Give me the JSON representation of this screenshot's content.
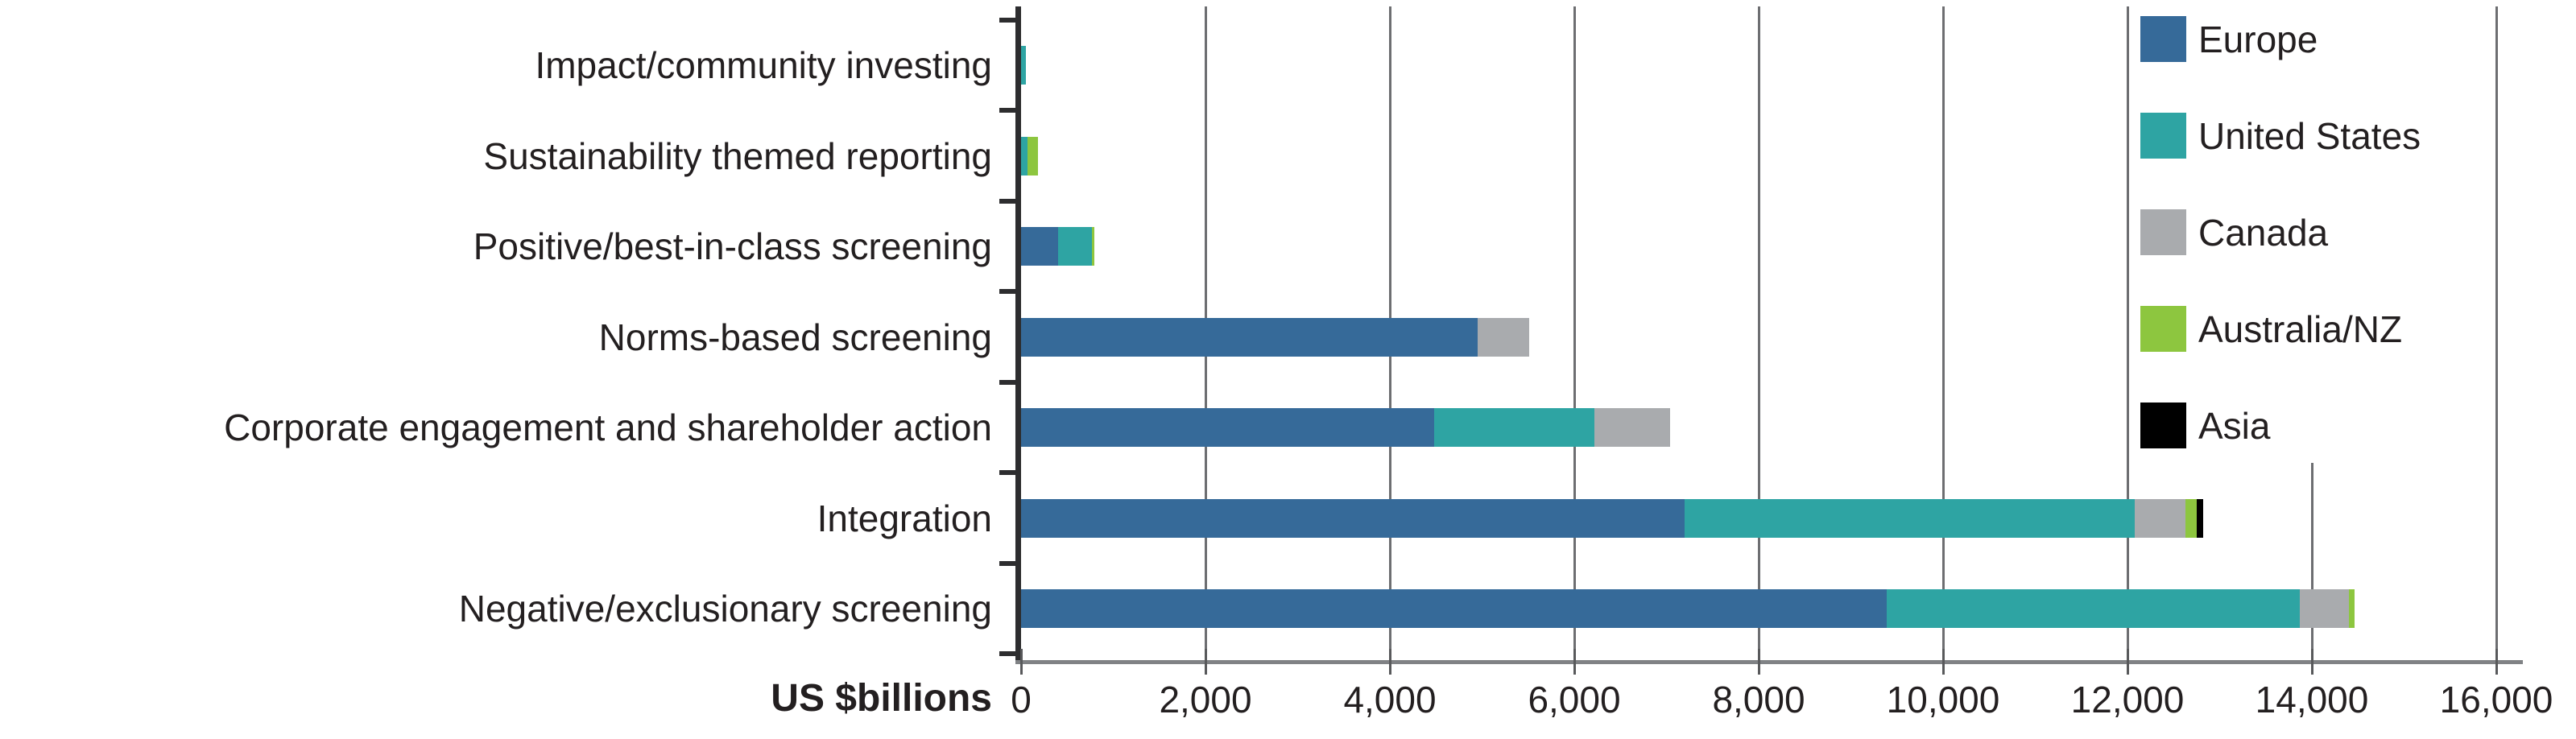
{
  "chart_data": {
    "type": "bar",
    "orientation": "horizontal",
    "stacked": true,
    "title": "",
    "xlabel": "US $billions",
    "xlim": [
      0,
      16000
    ],
    "xticks": [
      0,
      2000,
      4000,
      6000,
      8000,
      10000,
      12000,
      14000,
      16000
    ],
    "xtick_labels": [
      "0",
      "2,000",
      "4,000",
      "6,000",
      "8,000",
      "10,000",
      "12,000",
      "14,000",
      "16,000"
    ],
    "grid": true,
    "legend_position": "top-right",
    "categories": [
      "Impact/community investing",
      "Sustainability themed reporting",
      "Positive/best-in-class screening",
      "Norms-based screening",
      "Corporate engagement and shareholder action",
      "Integration",
      "Negative/exclusionary screening"
    ],
    "series": [
      {
        "name": "Europe",
        "color": "#366A99",
        "values": [
          0,
          0,
          400,
          4950,
          4480,
          7200,
          9390
        ]
      },
      {
        "name": "United States",
        "color": "#2EA4A3",
        "values": [
          50,
          70,
          365,
          0,
          1740,
          4880,
          4480
        ]
      },
      {
        "name": "Canada",
        "color": "#A9ABAE",
        "values": [
          0,
          0,
          0,
          560,
          820,
          550,
          530
        ]
      },
      {
        "name": "Australia/NZ",
        "color": "#8DC63F",
        "values": [
          0,
          115,
          30,
          0,
          0,
          120,
          60
        ]
      },
      {
        "name": "Asia",
        "color": "#000000",
        "values": [
          0,
          0,
          0,
          0,
          0,
          70,
          0
        ]
      }
    ],
    "colors": {
      "grid": "#6D6E71",
      "x_axis": "#808285",
      "y_axis": "#2D2D2F",
      "x_tick": "#58595B",
      "text": "#231F20"
    }
  }
}
